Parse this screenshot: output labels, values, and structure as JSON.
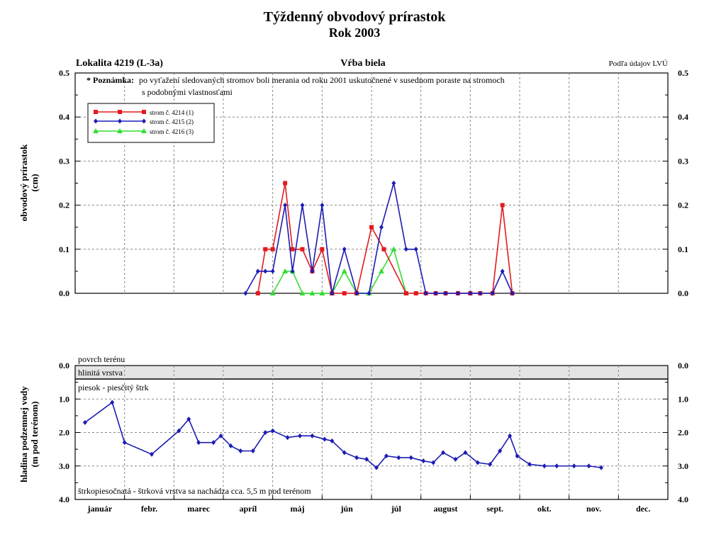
{
  "title": "Týždenný obvodový prírastok",
  "subtitle": "Rok 2003",
  "location": "Lokalita 4219 (L-3a)",
  "species": "Vŕba biela",
  "source": "Podľa údajov LVÚ",
  "note_label": "* Poznámka:",
  "note_line1": "po vyťažení sledovaných stromov boli merania od roku 2001 uskutočnené v susednom poraste na stromoch",
  "note_line2": "s podobnými vlastnosťami",
  "colors": {
    "red": "#e41a1c",
    "blue": "#1c1cb4",
    "green": "#33dd33",
    "grid": "#888888",
    "band": "#e4e4e4"
  },
  "chart_data": [
    {
      "type": "line",
      "ylabel_line1": "obvodový prírastok",
      "ylabel_line2": "(cm)",
      "ylim": [
        0,
        0.5
      ],
      "yticks": [
        "0.0",
        "0.1",
        "0.2",
        "0.3",
        "0.4",
        "0.5"
      ],
      "grid": true,
      "legend_placement": "top-left",
      "series": [
        {
          "name": "strom č. 4214 (1)",
          "color": "#e41a1c",
          "marker": "square",
          "points": [
            [
              3.7,
              0
            ],
            [
              3.85,
              0.1
            ],
            [
              4.0,
              0.1
            ],
            [
              4.25,
              0.25
            ],
            [
              4.4,
              0.1
            ],
            [
              4.6,
              0.1
            ],
            [
              4.8,
              0.05
            ],
            [
              5.0,
              0.1
            ],
            [
              5.2,
              0
            ],
            [
              5.45,
              0
            ],
            [
              5.7,
              0
            ],
            [
              6.0,
              0.15
            ],
            [
              6.25,
              0.1
            ],
            [
              6.7,
              0
            ],
            [
              6.9,
              0
            ],
            [
              7.1,
              0
            ],
            [
              7.3,
              0
            ],
            [
              7.5,
              0
            ],
            [
              7.75,
              0
            ],
            [
              8.0,
              0
            ],
            [
              8.2,
              0
            ],
            [
              8.45,
              0
            ],
            [
              8.65,
              0.2
            ],
            [
              8.85,
              0
            ]
          ]
        },
        {
          "name": "strom č. 4215 (2)",
          "color": "#1c1cb4",
          "marker": "diamond",
          "points": [
            [
              3.45,
              0
            ],
            [
              3.7,
              0.05
            ],
            [
              3.85,
              0.05
            ],
            [
              4.0,
              0.05
            ],
            [
              4.25,
              0.2
            ],
            [
              4.4,
              0.05
            ],
            [
              4.6,
              0.2
            ],
            [
              4.8,
              0.05
            ],
            [
              5.0,
              0.2
            ],
            [
              5.2,
              0
            ],
            [
              5.45,
              0.1
            ],
            [
              5.7,
              0
            ],
            [
              5.95,
              0
            ],
            [
              6.2,
              0.15
            ],
            [
              6.45,
              0.25
            ],
            [
              6.7,
              0.1
            ],
            [
              6.9,
              0.1
            ],
            [
              7.1,
              0
            ],
            [
              7.3,
              0
            ],
            [
              7.5,
              0
            ],
            [
              7.75,
              0
            ],
            [
              8.0,
              0
            ],
            [
              8.2,
              0
            ],
            [
              8.45,
              0
            ],
            [
              8.65,
              0.05
            ],
            [
              8.85,
              0
            ]
          ]
        },
        {
          "name": "strom č. 4216 (3)",
          "color": "#33dd33",
          "marker": "triangle",
          "points": [
            [
              4.0,
              0
            ],
            [
              4.25,
              0.05
            ],
            [
              4.4,
              0.05
            ],
            [
              4.6,
              0
            ],
            [
              4.8,
              0
            ],
            [
              5.0,
              0
            ],
            [
              5.2,
              0
            ],
            [
              5.45,
              0.05
            ],
            [
              5.7,
              0
            ],
            [
              5.95,
              0
            ],
            [
              6.2,
              0.05
            ],
            [
              6.45,
              0.1
            ],
            [
              6.7,
              0
            ]
          ]
        }
      ]
    },
    {
      "type": "line",
      "ylabel_line1": "hladina podzemnej vody",
      "ylabel_line2": "(m pod terénom)",
      "ylim": [
        0,
        4.0
      ],
      "y_inverted": true,
      "yticks": [
        "0.0",
        "1.0",
        "2.0",
        "3.0",
        "4.0"
      ],
      "grid": true,
      "band": {
        "from": 0.15,
        "to": 0.5
      },
      "labels": {
        "surface": "povrch terénu",
        "clay": "hlinitá vrstva",
        "sand": "piesok - piesčitý štrk",
        "gravel": "štrkopiesočnatá - štrková vrstva sa nachádza cca. 5,5 m pod terénom"
      },
      "series": [
        {
          "name": "",
          "color": "#1c1cb4",
          "marker": "diamond",
          "points": [
            [
              0.2,
              1.7
            ],
            [
              0.75,
              1.1
            ],
            [
              1.0,
              2.3
            ],
            [
              1.55,
              2.65
            ],
            [
              2.1,
              1.95
            ],
            [
              2.3,
              1.6
            ],
            [
              2.5,
              2.3
            ],
            [
              2.8,
              2.3
            ],
            [
              2.95,
              2.1
            ],
            [
              3.15,
              2.4
            ],
            [
              3.35,
              2.55
            ],
            [
              3.6,
              2.55
            ],
            [
              3.85,
              2.0
            ],
            [
              4.0,
              1.95
            ],
            [
              4.3,
              2.15
            ],
            [
              4.55,
              2.1
            ],
            [
              4.8,
              2.1
            ],
            [
              5.05,
              2.2
            ],
            [
              5.2,
              2.25
            ],
            [
              5.45,
              2.6
            ],
            [
              5.7,
              2.75
            ],
            [
              5.9,
              2.8
            ],
            [
              6.1,
              3.05
            ],
            [
              6.3,
              2.7
            ],
            [
              6.55,
              2.75
            ],
            [
              6.8,
              2.75
            ],
            [
              7.05,
              2.85
            ],
            [
              7.25,
              2.9
            ],
            [
              7.45,
              2.6
            ],
            [
              7.7,
              2.8
            ],
            [
              7.9,
              2.6
            ],
            [
              8.15,
              2.9
            ],
            [
              8.4,
              2.95
            ],
            [
              8.6,
              2.55
            ],
            [
              8.8,
              2.1
            ],
            [
              8.95,
              2.7
            ],
            [
              9.2,
              2.95
            ],
            [
              9.5,
              3.0
            ],
            [
              9.75,
              3.0
            ],
            [
              10.1,
              3.0
            ],
            [
              10.4,
              3.0
            ],
            [
              10.65,
              3.05
            ]
          ]
        }
      ]
    }
  ],
  "months": [
    "január",
    "febr.",
    "marec",
    "apríl",
    "máj",
    "jún",
    "júl",
    "august",
    "sept.",
    "okt.",
    "nov.",
    "dec."
  ]
}
